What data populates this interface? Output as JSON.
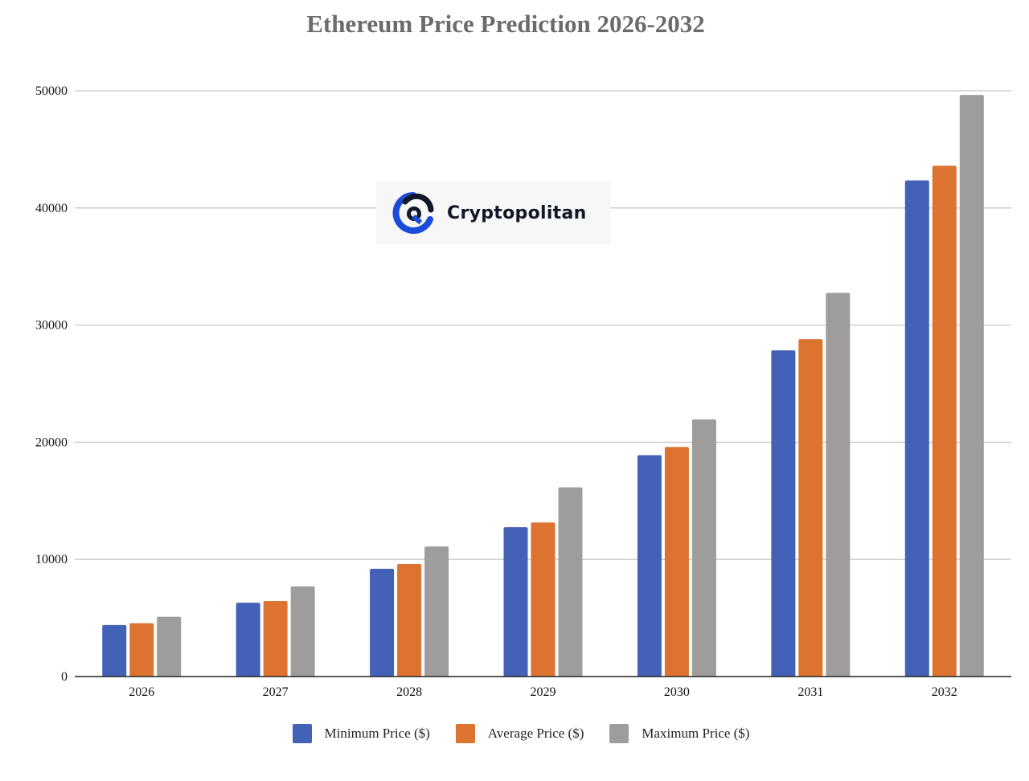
{
  "chart_data": {
    "type": "bar",
    "title": "Ethereum Price Prediction 2026-2032",
    "xlabel": "",
    "ylabel": "",
    "categories": [
      "2026",
      "2027",
      "2028",
      "2029",
      "2030",
      "2031",
      "2032"
    ],
    "series": [
      {
        "name": "Minimum Price ($)",
        "color": "#4461b8",
        "values": [
          4400,
          6300,
          9200,
          12750,
          18900,
          27850,
          42350
        ]
      },
      {
        "name": "Average Price ($)",
        "color": "#dd7330",
        "values": [
          4550,
          6450,
          9600,
          13150,
          19600,
          28800,
          43600
        ]
      },
      {
        "name": "Maximum Price ($)",
        "color": "#9e9d9c",
        "values": [
          5100,
          7700,
          11100,
          16150,
          21950,
          32750,
          49650
        ]
      }
    ],
    "ylim": [
      0,
      50000
    ],
    "yticks": [
      "0",
      "10000",
      "20000",
      "30000",
      "40000",
      "50000"
    ],
    "grid": true,
    "legend": "bottom"
  },
  "watermark": {
    "text": "Cryptopolitan",
    "icon": "cryptopolitan-logo-icon"
  },
  "colors": {
    "gridline": "#c8c8c8",
    "axis": "#222222",
    "title": "#6b6b6b"
  }
}
